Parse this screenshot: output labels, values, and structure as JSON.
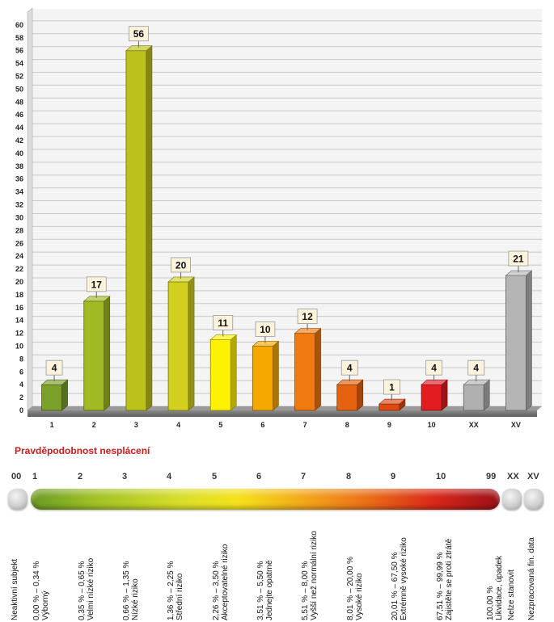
{
  "chart_data": {
    "type": "bar",
    "categories": [
      "1",
      "2",
      "3",
      "4",
      "5",
      "6",
      "7",
      "8",
      "9",
      "10",
      "XX",
      "XV"
    ],
    "values": [
      4,
      17,
      56,
      20,
      11,
      10,
      12,
      4,
      1,
      4,
      4,
      21
    ],
    "colors": [
      "#7aa02a",
      "#9fba22",
      "#bcc21a",
      "#d2cf1e",
      "#fff200",
      "#f5a800",
      "#ee7a10",
      "#e5620f",
      "#df4a12",
      "#e31c20",
      "#b0b0b0",
      "#b5b5b5"
    ],
    "ylim": [
      0,
      62
    ],
    "yticks": [
      0,
      2,
      4,
      6,
      8,
      10,
      12,
      14,
      16,
      18,
      20,
      22,
      24,
      26,
      28,
      30,
      32,
      34,
      36,
      38,
      40,
      42,
      44,
      46,
      48,
      50,
      52,
      54,
      56,
      58,
      60
    ],
    "grid": true,
    "legend": "none"
  },
  "section_title": "Pravděpodobnost nesplácení",
  "scale": {
    "labels": [
      "00",
      "1",
      "2",
      "3",
      "4",
      "5",
      "6",
      "7",
      "8",
      "9",
      "10",
      "99",
      "XX",
      "XV"
    ],
    "descriptions": [
      [
        "Neaktivní subjekt"
      ],
      [
        "0,00 % – 0,34 %",
        "Výborný"
      ],
      [
        "0,35 % – 0,65 %",
        "Velmi nízké riziko"
      ],
      [
        "0,66 % – 1,35 %",
        "Nízké riziko"
      ],
      [
        "1,36 % – 2,25 %",
        "Střední riziko"
      ],
      [
        "2,26 % – 3,50 %",
        "Akceptovatelné riziko"
      ],
      [
        "3,51 % – 5,50 %",
        "Jednejte opatrně"
      ],
      [
        "5,51 % – 8,00 %",
        "Vyšší než normální riziko"
      ],
      [
        "8,01 % – 20,00 %",
        "Vysoké riziko"
      ],
      [
        "20,01 % – 67,50 %",
        "Extrémně vysoké riziko"
      ],
      [
        "67,51 % – 99,99 %",
        "Zajistěte se proti ztrátě"
      ],
      [
        "100,00 %",
        "Likvidace, úpadek"
      ],
      [
        "Nelze stanovit"
      ],
      [
        "Nezpracovaná fin. data"
      ]
    ]
  }
}
